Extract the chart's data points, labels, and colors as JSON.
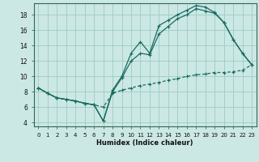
{
  "xlabel": "Humidex (Indice chaleur)",
  "background_color": "#cce8e4",
  "grid_color": "#99ccc6",
  "line_color": "#1a6b60",
  "xlim": [
    -0.5,
    23.5
  ],
  "ylim": [
    3.5,
    19.5
  ],
  "xticks": [
    0,
    1,
    2,
    3,
    4,
    5,
    6,
    7,
    8,
    9,
    10,
    11,
    12,
    13,
    14,
    15,
    16,
    17,
    18,
    19,
    20,
    21,
    22,
    23
  ],
  "yticks": [
    4,
    6,
    8,
    10,
    12,
    14,
    16,
    18
  ],
  "line1_x": [
    0,
    1,
    2,
    3,
    4,
    5,
    6,
    7,
    8,
    9,
    10,
    11,
    12,
    13,
    14,
    15,
    16,
    17,
    18,
    19,
    20,
    21,
    22,
    23
  ],
  "line1_y": [
    8.5,
    7.8,
    7.2,
    7.0,
    6.8,
    6.5,
    6.3,
    4.2,
    8.2,
    10.0,
    13.0,
    14.5,
    13.0,
    16.6,
    17.3,
    18.0,
    18.6,
    19.2,
    19.0,
    18.3,
    17.0,
    14.8,
    13.0,
    11.5
  ],
  "line2_x": [
    0,
    1,
    2,
    3,
    4,
    5,
    6,
    7,
    8,
    9,
    10,
    11,
    12,
    13,
    14,
    15,
    16,
    17,
    18,
    19,
    20,
    21,
    22,
    23
  ],
  "line2_y": [
    8.5,
    7.8,
    7.2,
    7.0,
    6.8,
    6.5,
    6.3,
    4.2,
    8.0,
    9.8,
    12.0,
    13.0,
    12.8,
    15.5,
    16.5,
    17.5,
    18.0,
    18.8,
    18.5,
    18.2,
    17.0,
    14.8,
    13.0,
    11.5
  ],
  "line3_x": [
    0,
    1,
    2,
    3,
    4,
    5,
    6,
    7,
    8,
    9,
    10,
    11,
    12,
    13,
    14,
    15,
    16,
    17,
    18,
    19,
    20,
    21,
    22,
    23
  ],
  "line3_y": [
    8.5,
    7.8,
    7.2,
    7.0,
    6.8,
    6.5,
    6.3,
    6.0,
    7.8,
    8.2,
    8.5,
    8.8,
    9.0,
    9.2,
    9.5,
    9.7,
    10.0,
    10.2,
    10.3,
    10.5,
    10.5,
    10.6,
    10.8,
    11.5
  ]
}
